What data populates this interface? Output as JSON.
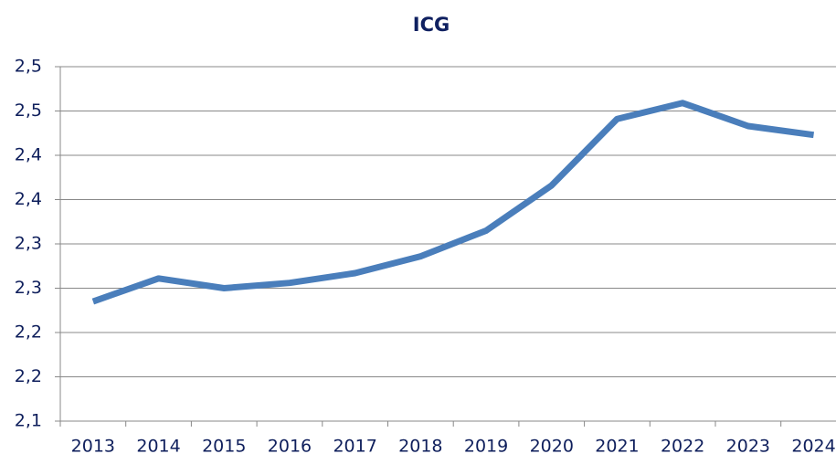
{
  "chart_data": {
    "type": "line",
    "title": "ICG",
    "categories": [
      "2013",
      "2014",
      "2015",
      "2016",
      "2017",
      "2018",
      "2019",
      "2020",
      "2021",
      "2022",
      "2023",
      "2024"
    ],
    "series": [
      {
        "name": "ICG",
        "color": "#4a7ebb",
        "values": [
          2.235,
          2.261,
          2.25,
          2.256,
          2.267,
          2.286,
          2.315,
          2.366,
          2.441,
          2.459,
          2.433,
          2.423
        ]
      }
    ],
    "ylim": [
      2.1,
      2.5
    ],
    "yticks": [
      {
        "value": 2.1,
        "label": "2,1"
      },
      {
        "value": 2.15,
        "label": "2,2"
      },
      {
        "value": 2.2,
        "label": "2,2"
      },
      {
        "value": 2.25,
        "label": "2,3"
      },
      {
        "value": 2.3,
        "label": "2,3"
      },
      {
        "value": 2.35,
        "label": "2,4"
      },
      {
        "value": 2.4,
        "label": "2,4"
      },
      {
        "value": 2.45,
        "label": "2,5"
      },
      {
        "value": 2.5,
        "label": "2,5"
      }
    ],
    "grid": true
  }
}
